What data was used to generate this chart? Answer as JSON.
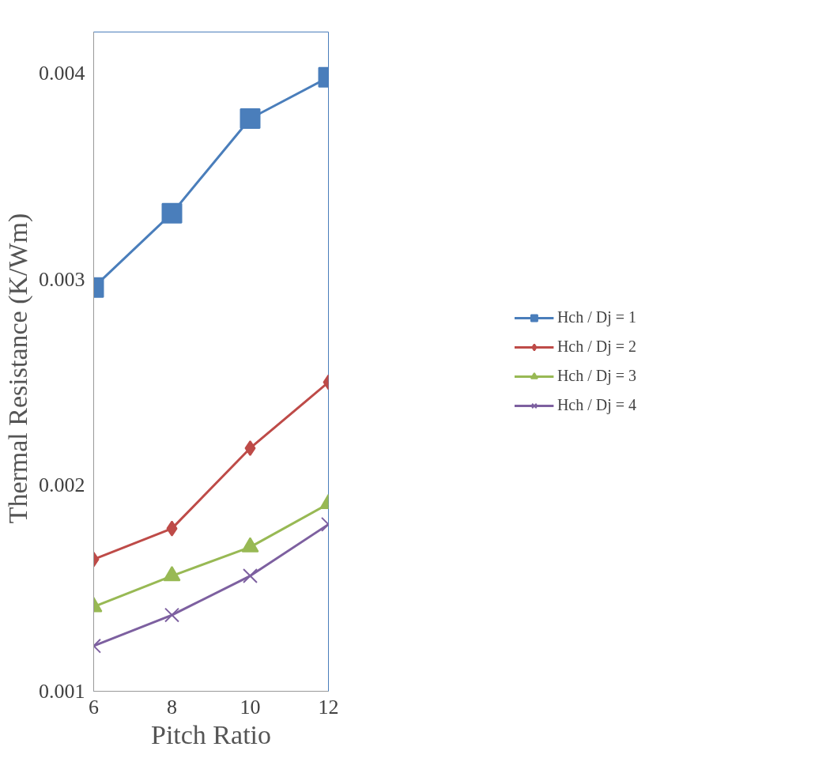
{
  "chart_data": {
    "type": "line",
    "xlabel": "Pitch Ratio",
    "ylabel": "Thermal  Resistance  (K/Wm)",
    "x": [
      6,
      8,
      10,
      12
    ],
    "xlim": [
      6,
      12
    ],
    "xticks": [
      6,
      8,
      10,
      12
    ],
    "ylim": [
      0.001,
      0.0042
    ],
    "yticks": [
      {
        "value": 0.001,
        "label": "0.001"
      },
      {
        "value": 0.002,
        "label": "0.002"
      },
      {
        "value": 0.003,
        "label": "0.003"
      },
      {
        "value": 0.004,
        "label": "0.004"
      }
    ],
    "grid": false,
    "legend": "right",
    "series": [
      {
        "name": "Hch / Dj = 1",
        "color": "#4a7ebb",
        "marker": "square",
        "values": [
          0.00296,
          0.00332,
          0.00378,
          0.00398
        ]
      },
      {
        "name": "Hch / Dj = 2",
        "color": "#be4b48",
        "marker": "diamond",
        "values": [
          0.00164,
          0.00179,
          0.00218,
          0.0025
        ]
      },
      {
        "name": "Hch / Dj = 3",
        "color": "#98b954",
        "marker": "triangle",
        "values": [
          0.00141,
          0.00156,
          0.0017,
          0.00191
        ]
      },
      {
        "name": "Hch / Dj = 4",
        "color": "#7d60a0",
        "marker": "cross",
        "values": [
          0.00122,
          0.00137,
          0.00156,
          0.00181
        ]
      }
    ]
  }
}
